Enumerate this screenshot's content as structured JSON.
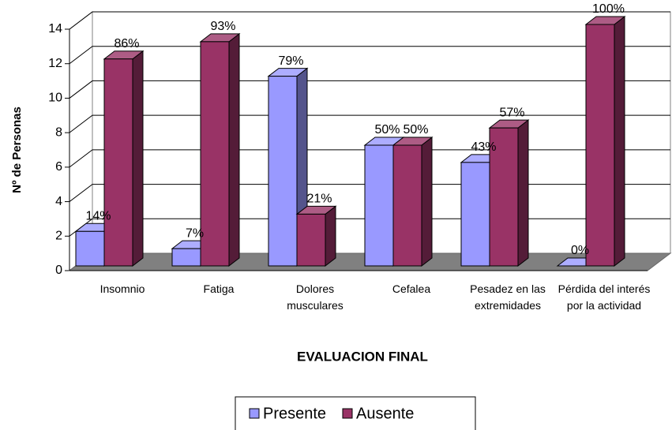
{
  "chart_data": {
    "type": "bar3d",
    "x_label": "EVALUACION FINAL",
    "y_label": "Nº de Personas",
    "categories": [
      "Insomnio",
      "Fatiga",
      "Dolores musculares",
      "Cefalea",
      "Pesadez en las extremidades",
      "Pérdida del interés por la actividad"
    ],
    "series": [
      {
        "name": "Presente",
        "color": "#9999ff",
        "values": [
          2,
          1,
          11,
          7,
          6,
          0
        ],
        "value_labels": [
          "14%",
          "7%",
          "79%",
          "50%",
          "43%",
          "0%"
        ]
      },
      {
        "name": "Ausente",
        "color": "#993366",
        "values": [
          12,
          13,
          3,
          7,
          8,
          14
        ],
        "value_labels": [
          "86%",
          "93%",
          "21%",
          "50%",
          "57%",
          "100%"
        ]
      }
    ],
    "ylim": [
      0,
      14
    ],
    "yticks": [
      0,
      2,
      4,
      6,
      8,
      10,
      12,
      14
    ],
    "grid": true,
    "legend": "bottom"
  }
}
